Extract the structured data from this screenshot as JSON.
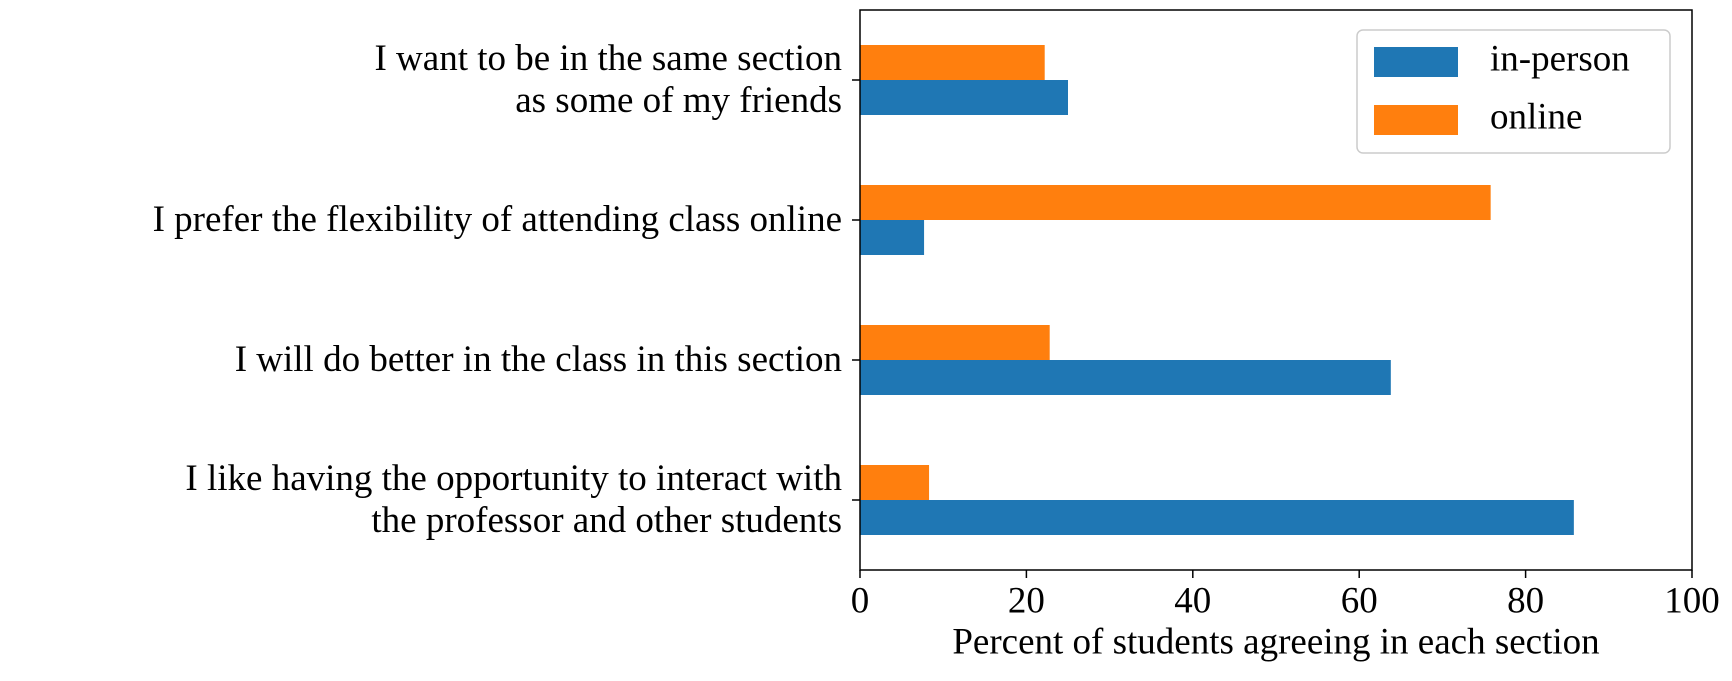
{
  "chart_data": {
    "type": "barh",
    "xlabel": "Percent of students agreeing in each section",
    "categories": [
      "I want to be in the same section\nas some of my friends",
      "I prefer the flexibility of attending class online",
      "I will do better in the class in this section",
      "I like having the opportunity to interact with\nthe professor and other students"
    ],
    "series": [
      {
        "name": "in-person",
        "color": "#1f77b4",
        "values": [
          25,
          7.7,
          63.8,
          85.8
        ]
      },
      {
        "name": "online",
        "color": "#ff7f0e",
        "values": [
          22.2,
          75.8,
          22.8,
          8.3
        ]
      }
    ],
    "xlim": [
      0,
      100
    ],
    "xticks": [
      0,
      20,
      40,
      60,
      80,
      100
    ],
    "legend": "upper right",
    "grid": false
  }
}
